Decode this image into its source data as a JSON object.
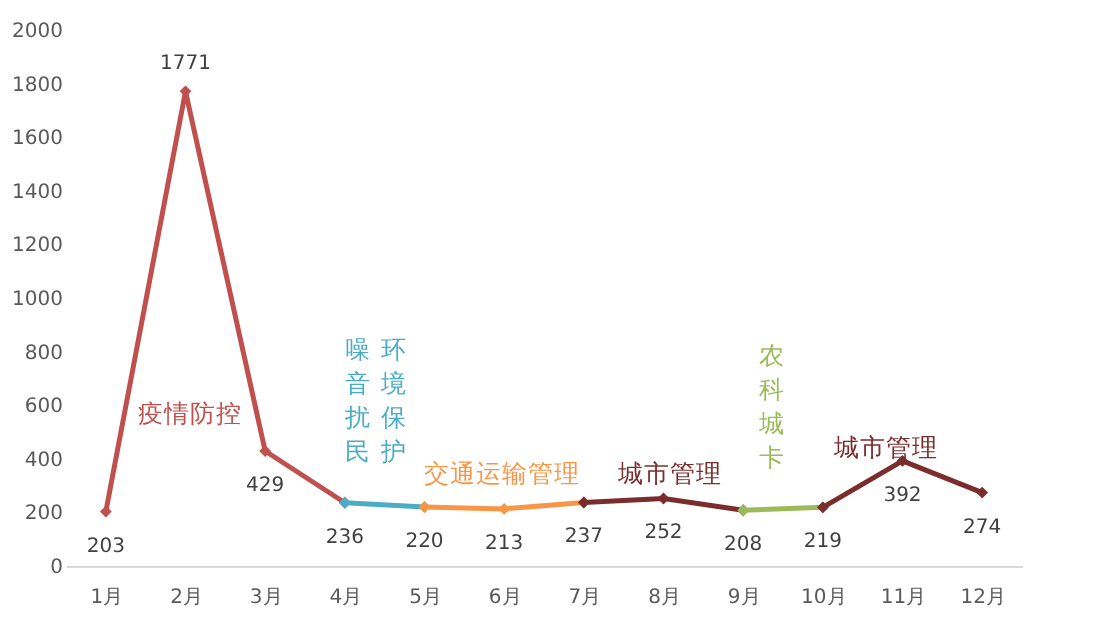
{
  "chart_data": {
    "type": "line",
    "categories": [
      "1月",
      "2月",
      "3月",
      "4月",
      "5月",
      "6月",
      "7月",
      "8月",
      "9月",
      "10月",
      "11月",
      "12月"
    ],
    "series": [
      {
        "color": "#c0504d",
        "values": [
          203,
          1771,
          429,
          236,
          null,
          null,
          null,
          null,
          null,
          null,
          null,
          null
        ],
        "value_labels": [
          "203",
          "1771",
          "429",
          "236",
          null,
          null,
          null,
          null,
          null,
          null,
          null,
          null
        ]
      },
      {
        "color": "#4bacc6",
        "values": [
          null,
          null,
          null,
          236,
          220,
          null,
          null,
          null,
          null,
          null,
          null,
          null
        ],
        "value_labels": [
          null,
          null,
          null,
          null,
          "220",
          null,
          null,
          null,
          null,
          null,
          null,
          null
        ]
      },
      {
        "color": "#f79646",
        "values": [
          null,
          null,
          null,
          null,
          220,
          213,
          237,
          null,
          null,
          null,
          null,
          null
        ],
        "value_labels": [
          null,
          null,
          null,
          null,
          null,
          "213",
          "237",
          null,
          null,
          null,
          null,
          null
        ]
      },
      {
        "color": "#7b2c2c",
        "values": [
          null,
          null,
          null,
          null,
          null,
          null,
          237,
          252,
          208,
          null,
          null,
          null
        ],
        "value_labels": [
          null,
          null,
          null,
          null,
          null,
          null,
          null,
          "252",
          "208",
          null,
          null,
          null
        ]
      },
      {
        "color": "#9bbb59",
        "values": [
          null,
          null,
          null,
          null,
          null,
          null,
          null,
          null,
          208,
          219,
          null,
          null
        ],
        "value_labels": [
          null,
          null,
          null,
          null,
          null,
          null,
          null,
          null,
          null,
          "219",
          null,
          null
        ]
      },
      {
        "color": "#7b2c2c",
        "values": [
          null,
          null,
          null,
          null,
          null,
          null,
          null,
          null,
          null,
          219,
          392,
          274
        ],
        "value_labels": [
          null,
          null,
          null,
          null,
          null,
          null,
          null,
          null,
          null,
          null,
          "392",
          "274"
        ]
      }
    ],
    "annotations": [
      "疫情防控",
      "噪音扰民",
      "环境保护",
      "交通运输管理",
      "城市管理",
      "农科城卡",
      "城市管理"
    ],
    "ylim": [
      0,
      2000
    ],
    "yticks": [
      0,
      200,
      400,
      600,
      800,
      1000,
      1200,
      1400,
      1600,
      1800,
      2000
    ],
    "grid": false,
    "marker": "diamond",
    "line_style": "solid"
  }
}
